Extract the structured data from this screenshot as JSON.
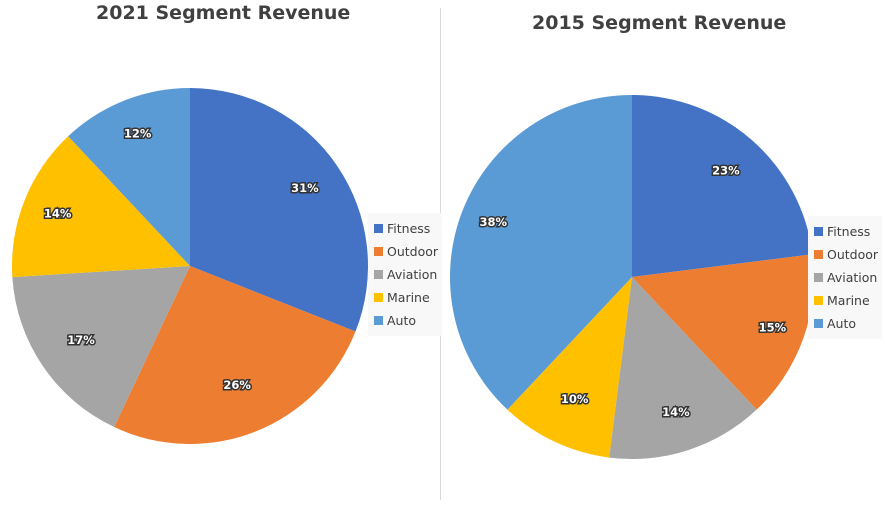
{
  "chart_data": [
    {
      "type": "pie",
      "title": "2021 Segment Revenue",
      "categories": [
        "Fitness",
        "Outdoor",
        "Aviation",
        "Marine",
        "Auto"
      ],
      "values": [
        31,
        26,
        17,
        14,
        12
      ],
      "labels": [
        "31%",
        "26%",
        "17%",
        "14%",
        "12%"
      ],
      "colors": [
        "#4472C4",
        "#ED7D31",
        "#A5A5A5",
        "#FFC000",
        "#5B9BD5"
      ],
      "start_angle": "12 o'clock",
      "direction": "clockwise",
      "legend_position": "right"
    },
    {
      "type": "pie",
      "title": "2015 Segment Revenue",
      "categories": [
        "Fitness",
        "Outdoor",
        "Aviation",
        "Marine",
        "Auto"
      ],
      "values": [
        23,
        15,
        14,
        10,
        38
      ],
      "labels": [
        "23%",
        "15%",
        "14%",
        "10%",
        "38%"
      ],
      "colors": [
        "#4472C4",
        "#ED7D31",
        "#A5A5A5",
        "#FFC000",
        "#5B9BD5"
      ],
      "start_angle": "12 o'clock",
      "direction": "clockwise",
      "legend_position": "right"
    }
  ]
}
